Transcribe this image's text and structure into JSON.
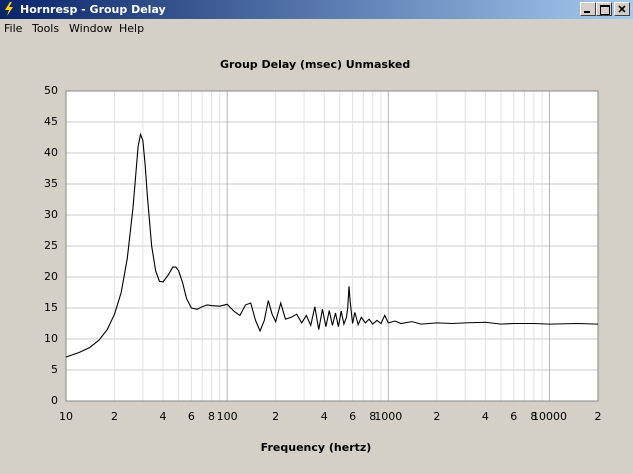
{
  "window": {
    "title": "Hornresp - Group Delay",
    "menu": [
      "File",
      "Tools",
      "Window",
      "Help"
    ]
  },
  "chart_data": {
    "type": "line",
    "title": "Group Delay (msec)",
    "subtitle": "Unmasked",
    "xlabel": "Frequency (hertz)",
    "xscale": "log",
    "grid": true,
    "xlim": [
      10,
      20000
    ],
    "ylim": [
      0,
      50
    ],
    "xticks": [
      10,
      {
        "value": 20,
        "label": "2"
      },
      {
        "value": 40,
        "label": "4"
      },
      {
        "value": 60,
        "label": "6"
      },
      {
        "value": 80,
        "label": "8"
      },
      100,
      {
        "value": 200,
        "label": "2"
      },
      {
        "value": 400,
        "label": "4"
      },
      {
        "value": 600,
        "label": "6"
      },
      {
        "value": 800,
        "label": "8"
      },
      1000,
      {
        "value": 2000,
        "label": "2"
      },
      {
        "value": 4000,
        "label": "4"
      },
      {
        "value": 6000,
        "label": "6"
      },
      {
        "value": 8000,
        "label": "8"
      },
      10000,
      {
        "value": 20000,
        "label": "2"
      }
    ],
    "x_minor_grid": [
      30,
      50,
      70,
      90,
      300,
      500,
      700,
      900,
      3000,
      5000,
      7000,
      9000
    ],
    "yticks": [
      0,
      5,
      10,
      15,
      20,
      25,
      30,
      35,
      40,
      45,
      50
    ],
    "x": [
      10,
      12,
      14,
      16,
      18,
      20,
      22,
      24,
      26,
      27,
      28,
      29,
      30,
      31,
      32,
      34,
      36,
      38,
      40,
      43,
      46,
      48,
      50,
      53,
      56,
      60,
      65,
      70,
      75,
      80,
      90,
      100,
      110,
      120,
      130,
      140,
      150,
      160,
      170,
      180,
      190,
      200,
      215,
      230,
      250,
      270,
      290,
      310,
      330,
      350,
      370,
      390,
      410,
      430,
      450,
      470,
      490,
      510,
      530,
      550,
      560,
      570,
      580,
      600,
      620,
      650,
      680,
      720,
      760,
      800,
      850,
      900,
      950,
      1000,
      1100,
      1200,
      1400,
      1600,
      2000,
      2500,
      3000,
      4000,
      5000,
      6000,
      8000,
      10000,
      15000,
      20000
    ],
    "series": [
      {
        "color": "#000000",
        "values": [
          7.1,
          7.8,
          8.6,
          9.8,
          11.5,
          14,
          17.5,
          23,
          31,
          36,
          41,
          43,
          42,
          38,
          33,
          25,
          21,
          19.3,
          19.2,
          20.3,
          21.6,
          21.6,
          21,
          19,
          16.5,
          15,
          14.8,
          15.2,
          15.5,
          15.4,
          15.3,
          15.6,
          14.5,
          13.8,
          15.5,
          15.8,
          13,
          11.3,
          13,
          16.2,
          14,
          12.8,
          15.8,
          13.2,
          13.5,
          14,
          12.6,
          13.8,
          12.2,
          15.2,
          11.5,
          14.8,
          12,
          14.6,
          12.2,
          14.2,
          12,
          14.5,
          12.4,
          13.5,
          15,
          18.5,
          16,
          12.5,
          14.3,
          12.3,
          13.5,
          12.6,
          13.2,
          12.4,
          13,
          12.5,
          13.8,
          12.6,
          12.9,
          12.5,
          12.8,
          12.4,
          12.6,
          12.5,
          12.6,
          12.7,
          12.4,
          12.5,
          12.5,
          12.4,
          12.5,
          12.4
        ]
      }
    ]
  }
}
